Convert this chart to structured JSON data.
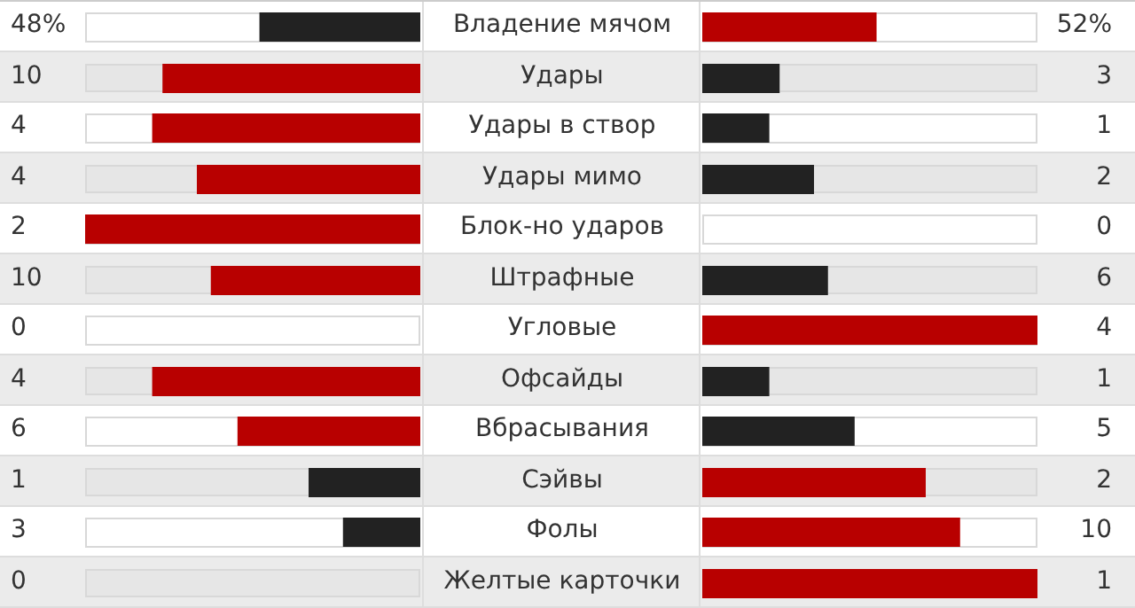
{
  "chart_data": {
    "type": "other",
    "categories": [
      "Владение мячом",
      "Удары",
      "Удары в створ",
      "Удары мимо",
      "Блок-но ударов",
      "Штрафные",
      "Угловые",
      "Офсайды",
      "Вбрасывания",
      "Сэйвы",
      "Фолы",
      "Желтые карточки"
    ],
    "series": [
      {
        "values": [
          48,
          10,
          4,
          4,
          2,
          10,
          0,
          4,
          6,
          1,
          3,
          0
        ],
        "colors": [
          "#222222",
          "#b80000",
          "#b80000",
          "#b80000",
          "#b80000",
          "#b80000",
          "#222222",
          "#b80000",
          "#b80000",
          "#222222",
          "#222222",
          "#222222"
        ],
        "value_labels": [
          "48%",
          "10",
          "4",
          "4",
          "2",
          "10",
          "0",
          "4",
          "6",
          "1",
          "3",
          "0"
        ]
      },
      {
        "values": [
          52,
          3,
          1,
          2,
          0,
          6,
          4,
          1,
          5,
          2,
          10,
          1
        ],
        "colors": [
          "#b80000",
          "#222222",
          "#222222",
          "#222222",
          "#222222",
          "#222222",
          "#b80000",
          "#222222",
          "#222222",
          "#b80000",
          "#b80000",
          "#b80000"
        ],
        "value_labels": [
          "52%",
          "3",
          "1",
          "2",
          "0",
          "6",
          "4",
          "1",
          "5",
          "2",
          "10",
          "1"
        ]
      }
    ]
  }
}
